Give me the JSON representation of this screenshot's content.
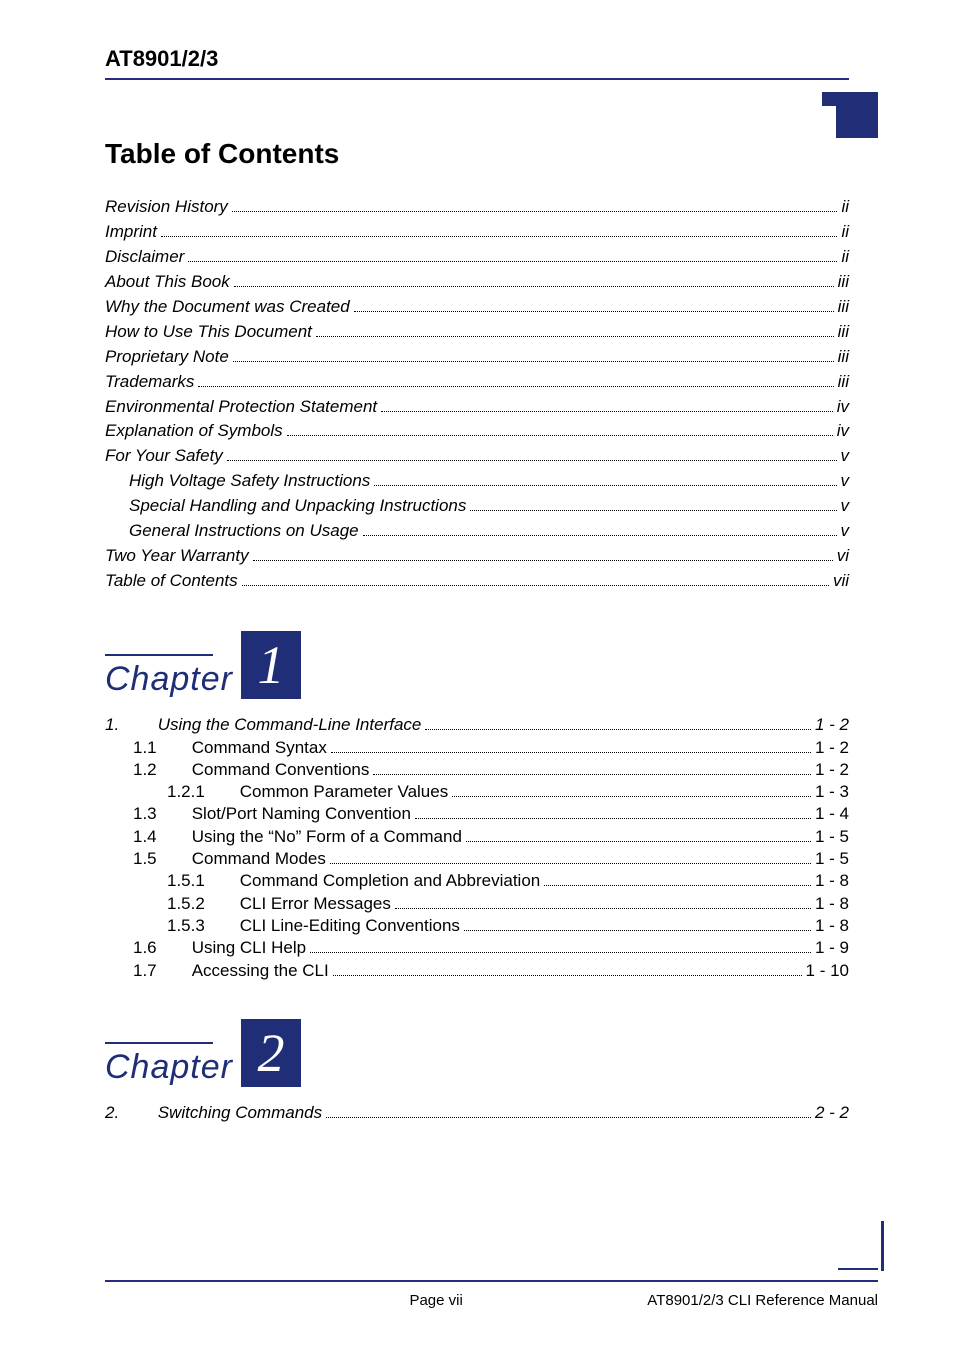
{
  "header": {
    "doc_id": "AT8901/2/3"
  },
  "colors": {
    "accent": "#1f2e76"
  },
  "toc_title": "Table of Contents",
  "front_matter": [
    {
      "label": "Revision History",
      "page": "ii",
      "level": 0
    },
    {
      "label": "Imprint",
      "page": "ii",
      "level": 0
    },
    {
      "label": "Disclaimer",
      "page": "ii",
      "level": 0
    },
    {
      "label": "About This Book",
      "page": "iii",
      "level": 0
    },
    {
      "label": "Why the Document was Created",
      "page": "iii",
      "level": 0
    },
    {
      "label": "How to Use This Document",
      "page": "iii",
      "level": 0
    },
    {
      "label": "Proprietary Note",
      "page": "iii",
      "level": 0
    },
    {
      "label": "Trademarks",
      "page": "iii",
      "level": 0
    },
    {
      "label": "Environmental Protection Statement",
      "page": "iv",
      "level": 0
    },
    {
      "label": "Explanation of Symbols",
      "page": "iv",
      "level": 0
    },
    {
      "label": "For Your Safety",
      "page": "v",
      "level": 0
    },
    {
      "label": "High Voltage Safety Instructions",
      "page": "v",
      "level": 1
    },
    {
      "label": "Special Handling and Unpacking Instructions",
      "page": "v",
      "level": 1
    },
    {
      "label": "General Instructions on Usage",
      "page": "v",
      "level": 1
    },
    {
      "label": "Two Year Warranty",
      "page": "vi",
      "level": 0
    },
    {
      "label": "Table of Contents",
      "page": "vii",
      "level": 0
    }
  ],
  "chapters": [
    {
      "label": "Chapter",
      "number": "1",
      "entries": [
        {
          "num": "1.",
          "label": "Using the Command-Line Interface",
          "page": "1 - 2",
          "level": 1
        },
        {
          "num": "1.1",
          "label": "Command Syntax",
          "page": "1 - 2",
          "level": 2
        },
        {
          "num": "1.2",
          "label": "Command Conventions",
          "page": "1 - 2",
          "level": 2
        },
        {
          "num": "1.2.1",
          "label": "Common Parameter Values",
          "page": "1 - 3",
          "level": 3
        },
        {
          "num": "1.3",
          "label": "Slot/Port Naming Convention",
          "page": "1 - 4",
          "level": 2
        },
        {
          "num": "1.4",
          "label": "Using the “No” Form of a Command",
          "page": "1 - 5",
          "level": 2
        },
        {
          "num": "1.5",
          "label": "Command Modes",
          "page": "1 - 5",
          "level": 2
        },
        {
          "num": "1.5.1",
          "label": "Command Completion and Abbreviation",
          "page": "1 - 8",
          "level": 3
        },
        {
          "num": "1.5.2",
          "label": "CLI Error Messages",
          "page": "1 - 8",
          "level": 3
        },
        {
          "num": "1.5.3",
          "label": "CLI Line-Editing Conventions",
          "page": "1 - 8",
          "level": 3
        },
        {
          "num": "1.6",
          "label": "Using CLI Help",
          "page": "1 - 9",
          "level": 2
        },
        {
          "num": "1.7",
          "label": "Accessing the CLI",
          "page": "1 - 10",
          "level": 2
        }
      ]
    },
    {
      "label": "Chapter",
      "number": "2",
      "entries": [
        {
          "num": "2.",
          "label": "Switching Commands",
          "page": "2 - 2",
          "level": 1
        }
      ]
    }
  ],
  "footer": {
    "center": "Page vii",
    "right": "AT8901/2/3 CLI Reference Manual"
  }
}
